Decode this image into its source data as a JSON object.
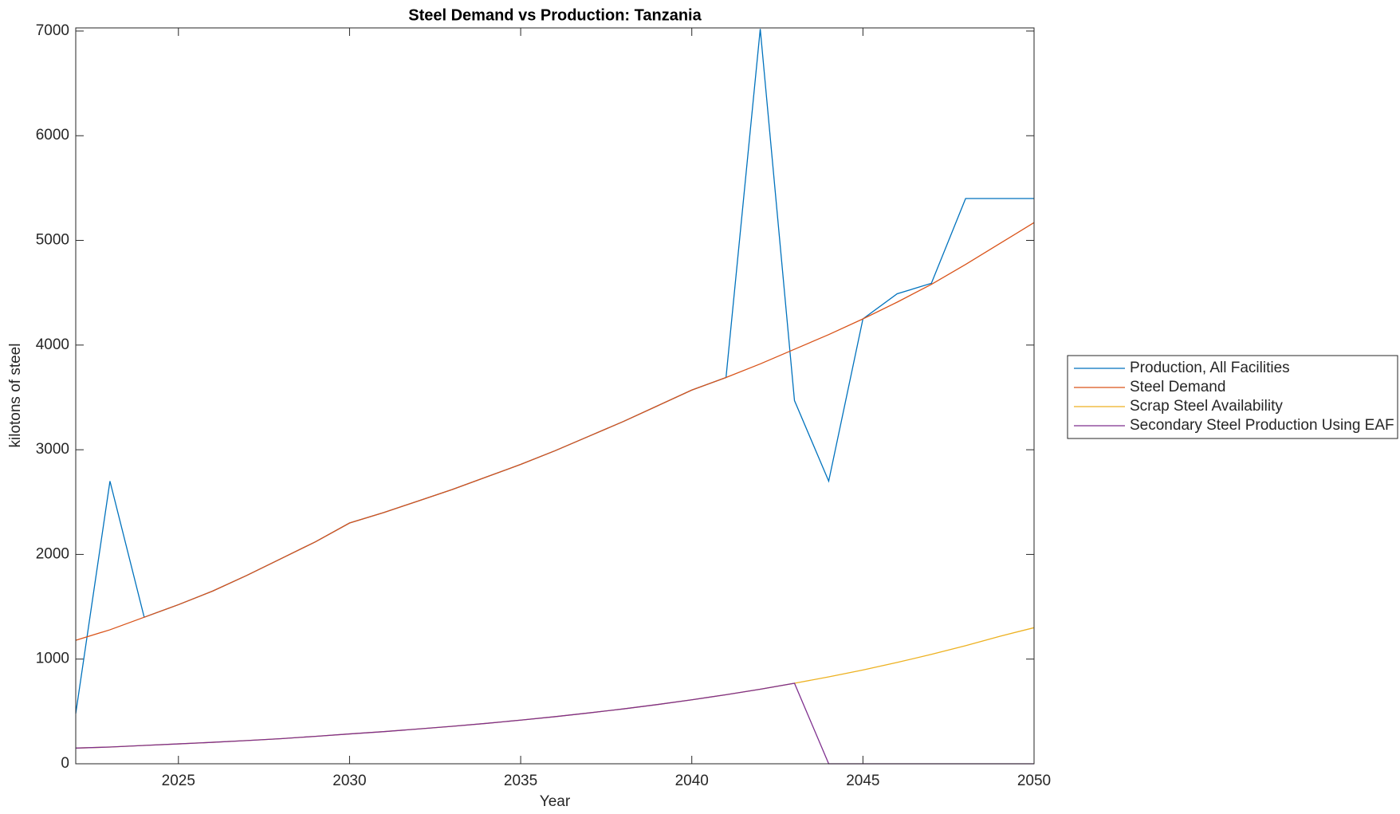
{
  "chart_data": {
    "type": "line",
    "title": "Steel Demand vs Production: Tanzania",
    "x_label": "Year",
    "y_label": "kilotons of steel",
    "x": [
      2022,
      2023,
      2024,
      2025,
      2026,
      2027,
      2028,
      2029,
      2030,
      2031,
      2032,
      2033,
      2034,
      2035,
      2036,
      2037,
      2038,
      2039,
      2040,
      2041,
      2042,
      2043,
      2044,
      2045,
      2046,
      2047,
      2048,
      2049,
      2050
    ],
    "series": [
      {
        "name": "Production, All Facilities",
        "color": "#0072BD",
        "values": [
          480,
          2700,
          1400,
          1520,
          1650,
          1800,
          1960,
          2120,
          2300,
          2400,
          2510,
          2620,
          2740,
          2860,
          2990,
          3130,
          3270,
          3420,
          3570,
          3690,
          7020,
          3470,
          2700,
          4250,
          4490,
          4590,
          5400,
          5400,
          5400
        ]
      },
      {
        "name": "Steel Demand",
        "color": "#D95319",
        "values": [
          1180,
          1280,
          1400,
          1520,
          1650,
          1800,
          1960,
          2120,
          2300,
          2400,
          2510,
          2620,
          2740,
          2860,
          2990,
          3130,
          3270,
          3420,
          3570,
          3690,
          3820,
          3960,
          4100,
          4250,
          4410,
          4580,
          4770,
          4970,
          5170
        ]
      },
      {
        "name": "Scrap Steel Availability",
        "color": "#EDB120",
        "values": [
          150,
          160,
          175,
          190,
          205,
          222,
          240,
          262,
          285,
          307,
          332,
          358,
          386,
          417,
          450,
          486,
          524,
          566,
          611,
          660,
          712,
          769,
          830,
          896,
          968,
          1045,
          1128,
          1218,
          1300
        ]
      },
      {
        "name": "Secondary Steel Production Using EAF",
        "color": "#7E2F8E",
        "values": [
          150,
          160,
          175,
          190,
          205,
          222,
          240,
          262,
          285,
          307,
          332,
          358,
          386,
          417,
          450,
          486,
          524,
          566,
          611,
          660,
          712,
          769,
          0,
          0,
          0,
          0,
          0,
          0,
          0
        ]
      }
    ],
    "xlim": [
      2022,
      2050
    ],
    "xticks": [
      2025,
      2030,
      2035,
      2040,
      2045,
      2050
    ],
    "ylim": [
      0,
      7030
    ],
    "yticks": [
      0,
      1000,
      2000,
      3000,
      4000,
      5000,
      6000,
      7000
    ],
    "legend": "outside-right"
  }
}
